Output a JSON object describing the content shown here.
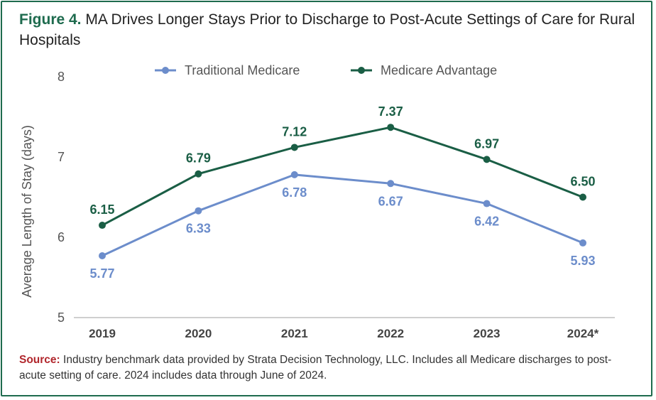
{
  "figure": {
    "label": "Figure 4.",
    "title": "MA Drives Longer Stays Prior to Discharge to Post-Acute Settings of Care for Rural Hospitals"
  },
  "colors": {
    "traditional": "#6c8dcb",
    "advantage": "#1a5e45",
    "frame": "#1e6b4e",
    "source_label": "#b1262c",
    "axis_text": "#555555"
  },
  "chart_data": {
    "type": "line",
    "categories": [
      "2019",
      "2020",
      "2021",
      "2022",
      "2023",
      "2024*"
    ],
    "series": [
      {
        "name": "Traditional Medicare",
        "values": [
          5.77,
          6.33,
          6.78,
          6.67,
          6.42,
          5.93
        ],
        "labels": [
          "5.77",
          "6.33",
          "6.78",
          "6.67",
          "6.42",
          "5.93"
        ],
        "label_position": "below"
      },
      {
        "name": "Medicare Advantage",
        "values": [
          6.15,
          6.79,
          7.12,
          7.37,
          6.97,
          6.5
        ],
        "labels": [
          "6.15",
          "6.79",
          "7.12",
          "7.37",
          "6.97",
          "6.50"
        ],
        "label_position": "above"
      }
    ],
    "ylabel": "Average Length of Stay (days)",
    "xlabel": "",
    "ylim": [
      5,
      8
    ],
    "yticks": [
      "5",
      "6",
      "7",
      "8"
    ],
    "legend_position": "top-center",
    "grid": false
  },
  "source": {
    "label": "Source:",
    "text": " Industry benchmark data provided by Strata Decision Technology, LLC. Includes all Medicare discharges to post-acute setting of care. 2024 includes data through June of 2024."
  }
}
